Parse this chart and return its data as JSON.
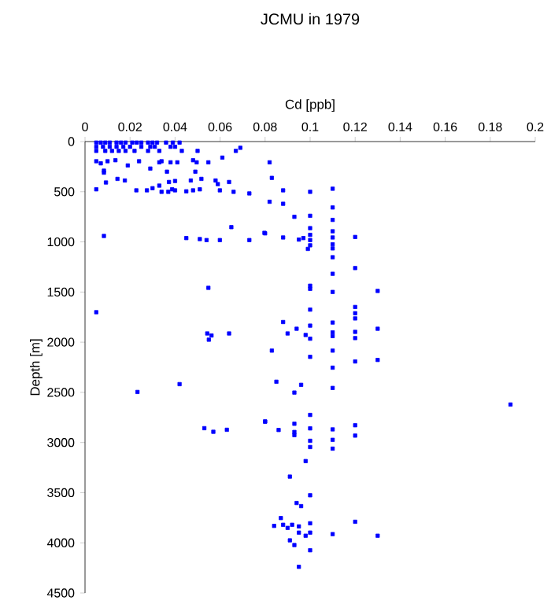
{
  "chart_data": {
    "type": "scatter",
    "title": "JCMU in 1979",
    "xlabel": "Cd [ppb]",
    "ylabel": "Depth [m]",
    "xlim": [
      0,
      0.2
    ],
    "xticks": [
      0,
      0.02,
      0.04,
      0.06,
      0.08,
      0.1,
      0.12,
      0.14,
      0.16,
      0.18,
      0.2
    ],
    "ylim": [
      4500,
      0
    ],
    "yticks": [
      0,
      500,
      1000,
      1500,
      2000,
      2500,
      3000,
      3500,
      4000,
      4500
    ],
    "marker": "square",
    "series": [
      {
        "color": "#0000ff",
        "x": [
          0.069,
          0.082,
          0.083,
          0.073,
          0.088,
          0.1,
          0.11,
          0.082,
          0.088,
          0.11,
          0.093,
          0.1,
          0.11,
          0.08,
          0.073,
          0.088,
          0.095,
          0.097,
          0.1,
          0.1,
          0.1,
          0.1,
          0.099,
          0.11,
          0.11,
          0.11,
          0.11,
          0.12,
          0.11,
          0.12,
          0.11,
          0.1,
          0.1,
          0.11,
          0.13,
          0.1,
          0.12,
          0.12,
          0.12,
          0.088,
          0.11,
          0.094,
          0.13,
          0.1,
          0.09,
          0.098,
          0.1,
          0.11,
          0.11,
          0.12,
          0.12,
          0.083,
          0.1,
          0.11,
          0.12,
          0.13,
          0.11,
          0.085,
          0.096,
          0.093,
          0.11,
          0.189,
          0.1,
          0.08,
          0.093,
          0.12,
          0.086,
          0.093,
          0.1,
          0.11,
          0.12,
          0.093,
          0.1,
          0.11,
          0.1,
          0.11,
          0.098,
          0.091,
          0.1,
          0.094,
          0.096,
          0.087,
          0.084,
          0.088,
          0.092,
          0.09,
          0.095,
          0.1,
          0.12,
          0.095,
          0.1,
          0.098,
          0.11,
          0.13,
          0.091,
          0.093,
          0.1,
          0.095,
          0.005,
          0.007,
          0.009,
          0.011,
          0.014,
          0.016,
          0.018,
          0.021,
          0.023,
          0.025,
          0.028,
          0.03,
          0.032,
          0.036,
          0.039,
          0.042,
          0.005,
          0.008,
          0.011,
          0.014,
          0.017,
          0.02,
          0.025,
          0.029,
          0.031,
          0.038,
          0.04,
          0.005,
          0.009,
          0.012,
          0.015,
          0.018,
          0.022,
          0.028,
          0.033,
          0.043,
          0.05,
          0.067,
          0.005,
          0.007,
          0.01,
          0.0135,
          0.019,
          0.0084,
          0.0084,
          0.0144,
          0.0177,
          0.0093,
          0.029,
          0.034,
          0.0364,
          0.038,
          0.041,
          0.033,
          0.024,
          0.048,
          0.0496,
          0.049,
          0.0548,
          0.061,
          0.047,
          0.0517,
          0.04,
          0.0373,
          0.033,
          0.058,
          0.059,
          0.064,
          0.005,
          0.0228,
          0.0275,
          0.03,
          0.034,
          0.037,
          0.0387,
          0.04,
          0.045,
          0.048,
          0.051,
          0.0599,
          0.066,
          0.0084,
          0.045,
          0.051,
          0.054,
          0.0599,
          0.0797,
          0.065,
          0.0548,
          0.005,
          0.0543,
          0.0562,
          0.055,
          0.064,
          0.0233,
          0.042,
          0.053,
          0.057,
          0.063,
          0.08
        ],
        "values": [
          62,
          207,
          362,
          517,
          486,
          501,
          470,
          600,
          620,
          657,
          750,
          740,
          781,
          915,
          982,
          956,
          977,
          962,
          863,
          930,
          982,
          1034,
          1070,
          894,
          956,
          1024,
          1065,
          951,
          1153,
          1261,
          1318,
          1437,
          1468,
          1499,
          1489,
          1675,
          1649,
          1711,
          1763,
          1799,
          1804,
          1866,
          1866,
          1835,
          1913,
          1928,
          1965,
          1902,
          1939,
          1897,
          1959,
          2084,
          2146,
          2084,
          2192,
          2177,
          2254,
          2394,
          2425,
          2502,
          2456,
          2621,
          2725,
          2792,
          2813,
          2828,
          2875,
          2895,
          2859,
          2869,
          2931,
          2926,
          2983,
          2973,
          3045,
          3061,
          3185,
          3340,
          3526,
          3603,
          3634,
          3753,
          3831,
          3820,
          3820,
          3851,
          3836,
          3805,
          3790,
          3898,
          3898,
          3929,
          3913,
          3929,
          3975,
          4022,
          4074,
          4239,
          10,
          10,
          10,
          10,
          10,
          10,
          10,
          10,
          10,
          10,
          10,
          10,
          10,
          10,
          10,
          10,
          52,
          52,
          52,
          52,
          52,
          52,
          52,
          52,
          52,
          52,
          52,
          93,
          93,
          93,
          93,
          93,
          93,
          93,
          93,
          93,
          93,
          93,
          196,
          217,
          196,
          186,
          238,
          290,
          310,
          372,
          388,
          408,
          269,
          196,
          300,
          207,
          207,
          207,
          196,
          186,
          207,
          300,
          207,
          160,
          388,
          372,
          393,
          403,
          439,
          388,
          424,
          403,
          476,
          486,
          486,
          465,
          501,
          501,
          476,
          486,
          496,
          486,
          476,
          486,
          501,
          941,
          962,
          972,
          982,
          982,
          910,
          853,
          1458,
          1701,
          1913,
          1933,
          1975,
          1913,
          2496,
          2418,
          2857,
          2893,
          2873,
          2790
        ]
      }
    ]
  }
}
